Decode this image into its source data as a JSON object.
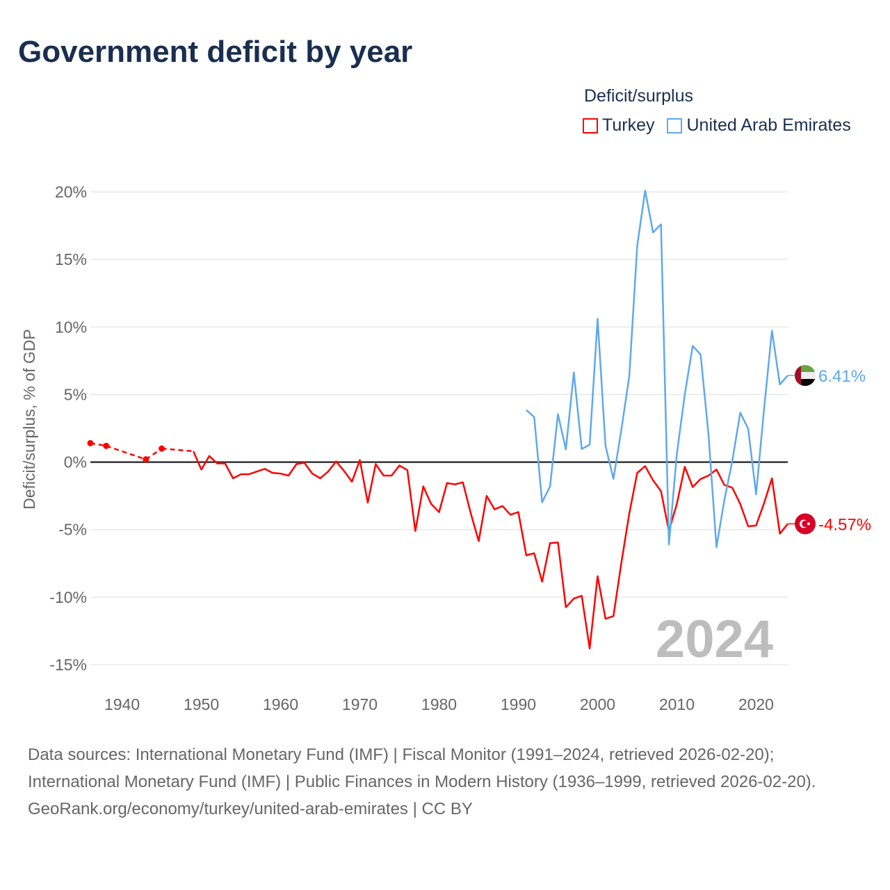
{
  "title": "Government deficit by year",
  "legend": {
    "title": "Deficit/surplus",
    "items": [
      "Turkey",
      "United Arab Emirates"
    ]
  },
  "colors": {
    "Turkey": "#ff0000",
    "United Arab Emirates": "#5fa8ec",
    "zero_line": "#333333",
    "grid": "#e8e8e8"
  },
  "year_watermark": "2024",
  "footer": {
    "sources": "Data sources: International Monetary Fund (IMF) | Fiscal Monitor (1991–2024, retrieved 2026-02-20); International Monetary Fund (IMF) | Public Finances in Modern History (1936–1999, retrieved 2026-02-20).",
    "credit": "GeoRank.org/economy/turkey/united-arab-emirates | CC BY"
  },
  "chart_data": {
    "type": "line",
    "title": "Government deficit by year",
    "xlabel": "",
    "ylabel": "Deficit/surplus, % of GDP",
    "xlim": [
      1936,
      2024
    ],
    "ylim": [
      -15,
      20
    ],
    "x_ticks": [
      1940,
      1950,
      1960,
      1970,
      1980,
      1990,
      2000,
      2010,
      2020
    ],
    "y_ticks": [
      20,
      15,
      10,
      5,
      0,
      -5,
      -10,
      -15
    ],
    "y_tick_labels": [
      "20%",
      "15%",
      "10%",
      "5%",
      "0%",
      "-5%",
      "-10%",
      "-15%"
    ],
    "legend_placement": "top-right",
    "grid": true,
    "series": [
      {
        "name": "Turkey",
        "end_label": "-4.57%",
        "points": [
          [
            1936,
            1.4
          ],
          [
            1938,
            1.2
          ],
          [
            1943,
            0.2
          ],
          [
            1945,
            1.0
          ],
          [
            1949,
            0.8
          ],
          [
            1950,
            -0.55
          ],
          [
            1951,
            0.45
          ],
          [
            1952,
            -0.1
          ],
          [
            1953,
            -0.1
          ],
          [
            1954,
            -1.2
          ],
          [
            1955,
            -0.9
          ],
          [
            1956,
            -0.9
          ],
          [
            1957,
            -0.7
          ],
          [
            1958,
            -0.5
          ],
          [
            1959,
            -0.8
          ],
          [
            1960,
            -0.85
          ],
          [
            1961,
            -1.0
          ],
          [
            1962,
            -0.15
          ],
          [
            1963,
            -0.05
          ],
          [
            1964,
            -0.85
          ],
          [
            1965,
            -1.2
          ],
          [
            1966,
            -0.7
          ],
          [
            1967,
            0.05
          ],
          [
            1968,
            -0.65
          ],
          [
            1969,
            -1.45
          ],
          [
            1970,
            0.15
          ],
          [
            1971,
            -3.0
          ],
          [
            1972,
            -0.15
          ],
          [
            1973,
            -1.0
          ],
          [
            1974,
            -1.0
          ],
          [
            1975,
            -0.25
          ],
          [
            1976,
            -0.6
          ],
          [
            1977,
            -5.1
          ],
          [
            1978,
            -1.8
          ],
          [
            1979,
            -3.1
          ],
          [
            1980,
            -3.7
          ],
          [
            1981,
            -1.55
          ],
          [
            1982,
            -1.65
          ],
          [
            1983,
            -1.5
          ],
          [
            1984,
            -3.8
          ],
          [
            1985,
            -5.85
          ],
          [
            1986,
            -2.5
          ],
          [
            1987,
            -3.5
          ],
          [
            1988,
            -3.25
          ],
          [
            1989,
            -3.9
          ],
          [
            1990,
            -3.7
          ],
          [
            1991,
            -6.9
          ],
          [
            1992,
            -6.75
          ],
          [
            1993,
            -8.85
          ],
          [
            1994,
            -6.0
          ],
          [
            1995,
            -5.95
          ],
          [
            1996,
            -10.75
          ],
          [
            1997,
            -10.1
          ],
          [
            1998,
            -9.9
          ],
          [
            1999,
            -13.8
          ],
          [
            2000,
            -8.45
          ],
          [
            2001,
            -11.6
          ],
          [
            2002,
            -11.4
          ],
          [
            2003,
            -7.45
          ],
          [
            2004,
            -3.8
          ],
          [
            2005,
            -0.8
          ],
          [
            2006,
            -0.3
          ],
          [
            2007,
            -1.35
          ],
          [
            2008,
            -2.15
          ],
          [
            2009,
            -5.1
          ],
          [
            2010,
            -3.1
          ],
          [
            2011,
            -0.35
          ],
          [
            2012,
            -1.85
          ],
          [
            2013,
            -1.25
          ],
          [
            2014,
            -1.0
          ],
          [
            2015,
            -0.55
          ],
          [
            2016,
            -1.7
          ],
          [
            2017,
            -1.9
          ],
          [
            2018,
            -3.1
          ],
          [
            2019,
            -4.75
          ],
          [
            2020,
            -4.7
          ],
          [
            2021,
            -3.05
          ],
          [
            2022,
            -1.2
          ],
          [
            2023,
            -5.3
          ],
          [
            2024,
            -4.57
          ]
        ]
      },
      {
        "name": "United Arab Emirates",
        "end_label": "6.41%",
        "points": [
          [
            1991,
            3.86
          ],
          [
            1992,
            3.33
          ],
          [
            1993,
            -2.97
          ],
          [
            1994,
            -1.8
          ],
          [
            1995,
            3.54
          ],
          [
            1996,
            0.94
          ],
          [
            1997,
            6.64
          ],
          [
            1998,
            0.97
          ],
          [
            1999,
            1.29
          ],
          [
            2000,
            10.6
          ],
          [
            2001,
            1.2
          ],
          [
            2002,
            -1.24
          ],
          [
            2003,
            2.4
          ],
          [
            2004,
            6.37
          ],
          [
            2005,
            16.0
          ],
          [
            2006,
            20.1
          ],
          [
            2007,
            17.0
          ],
          [
            2008,
            17.6
          ],
          [
            2009,
            -6.1
          ],
          [
            2010,
            0.6
          ],
          [
            2011,
            5.0
          ],
          [
            2012,
            8.6
          ],
          [
            2013,
            7.96
          ],
          [
            2014,
            2.0
          ],
          [
            2015,
            -6.3
          ],
          [
            2016,
            -2.8
          ],
          [
            2017,
            0.1
          ],
          [
            2018,
            3.66
          ],
          [
            2019,
            2.48
          ],
          [
            2020,
            -2.39
          ],
          [
            2021,
            3.9
          ],
          [
            2022,
            9.73
          ],
          [
            2023,
            5.75
          ],
          [
            2024,
            6.41
          ]
        ]
      }
    ]
  }
}
